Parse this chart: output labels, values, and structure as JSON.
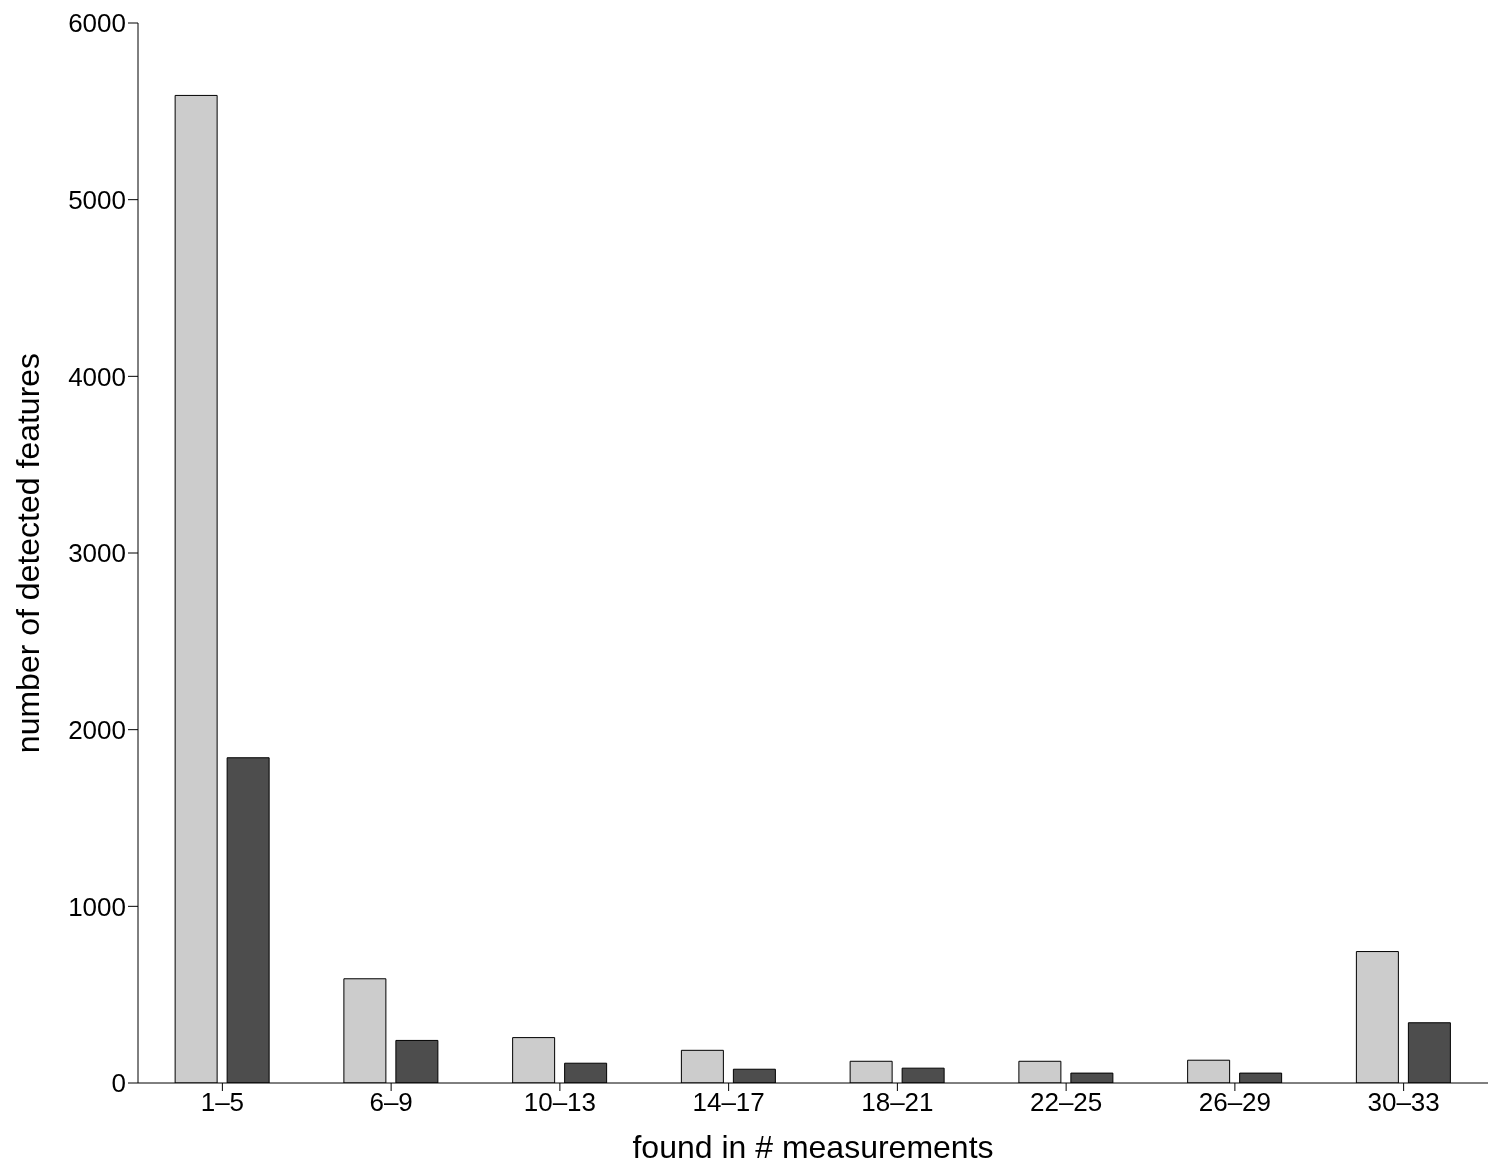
{
  "chart_data": {
    "type": "bar",
    "xlabel": "found in # measurements",
    "ylabel": "number of detected features",
    "categories": [
      "1–5",
      "6–9",
      "10–13",
      "14–17",
      "18–21",
      "22–25",
      "26–29",
      "30–33"
    ],
    "series": [
      {
        "color": "#cccccc",
        "values": [
          5590,
          590,
          257,
          185,
          123,
          123,
          129,
          744
        ]
      },
      {
        "color": "#4d4d4d",
        "values": [
          1841,
          241,
          112,
          78,
          84,
          56,
          56,
          341
        ]
      }
    ],
    "ylim": [
      0,
      6000
    ],
    "yticks": [
      0,
      1000,
      2000,
      3000,
      4000,
      5000,
      6000
    ],
    "grid": false,
    "legend": false
  }
}
